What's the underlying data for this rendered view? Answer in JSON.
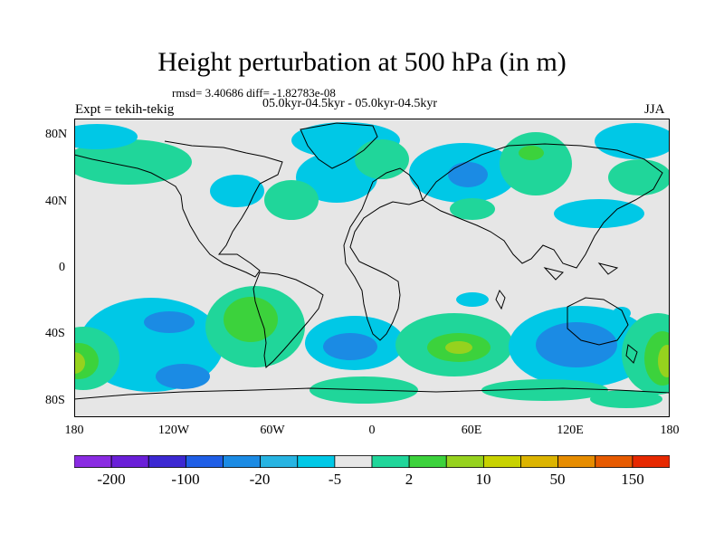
{
  "title": "Height perturbation at 500 hPa (in m)",
  "stats": "rmsd= 3.40686 diff= -1.82783e-08",
  "period": "05.0kyr-04.5kyr - 05.0kyr-04.5kyr",
  "experiment": "Expt = tekih-tekig",
  "season": "JJA",
  "lat_labels": [
    "80N",
    "40N",
    "0",
    "40S",
    "80S"
  ],
  "lon_labels": [
    "180",
    "120W",
    "60W",
    "0",
    "60E",
    "120E",
    "180"
  ],
  "colorbar": {
    "colors": [
      "#8a2be2",
      "#6a1fd8",
      "#3c28d2",
      "#1f5ee6",
      "#1b8be4",
      "#27b4e2",
      "#00c8e6",
      "#e6e6e6",
      "#20d69a",
      "#3cd23c",
      "#96d21e",
      "#c8d200",
      "#dcb400",
      "#e68c00",
      "#e65a00",
      "#e62800"
    ],
    "labels": [
      "-200",
      "-100",
      "-20",
      "-5",
      "2",
      "10",
      "50",
      "150"
    ]
  },
  "map_colors": {
    "background": "#e6e6e6",
    "neg_light": "#00c8e6",
    "neg_mid": "#1b8be4",
    "pos_light": "#20d69a",
    "pos_mid": "#3cd23c",
    "pos_strong": "#96d21e",
    "coast": "#000000"
  }
}
